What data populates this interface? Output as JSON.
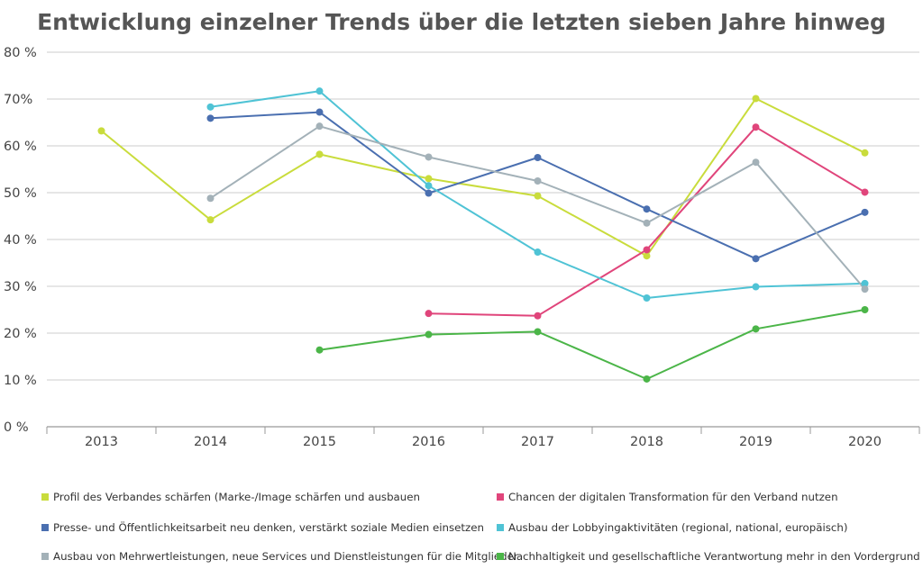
{
  "chart_data": {
    "type": "line",
    "title": "Entwicklung einzelner Trends über die letzten sieben Jahre hinweg",
    "xlabel": "",
    "ylabel": "",
    "x": [
      "2013",
      "2014",
      "2015",
      "2016",
      "2017",
      "2018",
      "2019",
      "2020"
    ],
    "ylim": [
      0,
      80
    ],
    "yticks": [
      0,
      10,
      20,
      30,
      40,
      50,
      60,
      70,
      80
    ],
    "ytick_labels": [
      "0 %",
      "10 %",
      "20 %",
      "30 %",
      "40 %",
      "50 %",
      "60 %",
      "70%",
      "80 %"
    ],
    "grid": "horizontal",
    "legend_position": "bottom",
    "series": [
      {
        "name": "Profil des Verbandes schärfen (Marke-/Image schärfen und ausbauen",
        "color": "#c9dc3c",
        "values": [
          63.2,
          44.2,
          58.2,
          53,
          49.3,
          36.5,
          70.1,
          58.5
        ]
      },
      {
        "name": "Chancen der digitalen Transformation für den Verband nutzen",
        "color": "#e0457b",
        "values": [
          null,
          null,
          null,
          24.2,
          23.7,
          37.8,
          64,
          50.1
        ]
      },
      {
        "name": "Presse- und Öffentlichkeitsarbeit neu denken, verstärkt soziale Medien einsetzen",
        "color": "#4a6fb0",
        "values": [
          null,
          65.9,
          67.2,
          49.9,
          57.5,
          46.5,
          35.9,
          45.8
        ]
      },
      {
        "name": "Ausbau der Lobbyingaktivitäten (regional, national, europäisch)",
        "color": "#4fc3d5",
        "values": [
          null,
          68.3,
          71.7,
          51.5,
          37.3,
          27.5,
          29.9,
          30.6
        ]
      },
      {
        "name": "Ausbau von Mehrwertleistungen, neue Services und Dienstleistungen für die Mitglieder",
        "color": "#a3b1b8",
        "values": [
          null,
          48.8,
          64.2,
          57.6,
          52.5,
          43.5,
          56.5,
          29.4
        ]
      },
      {
        "name": "Nachhaltigkeit und gesellschaftliche Verantwortung mehr in den Vordergrund rücken",
        "color": "#4bb548",
        "values": [
          null,
          null,
          16.4,
          19.7,
          20.3,
          10.2,
          20.9,
          25
        ]
      }
    ]
  }
}
